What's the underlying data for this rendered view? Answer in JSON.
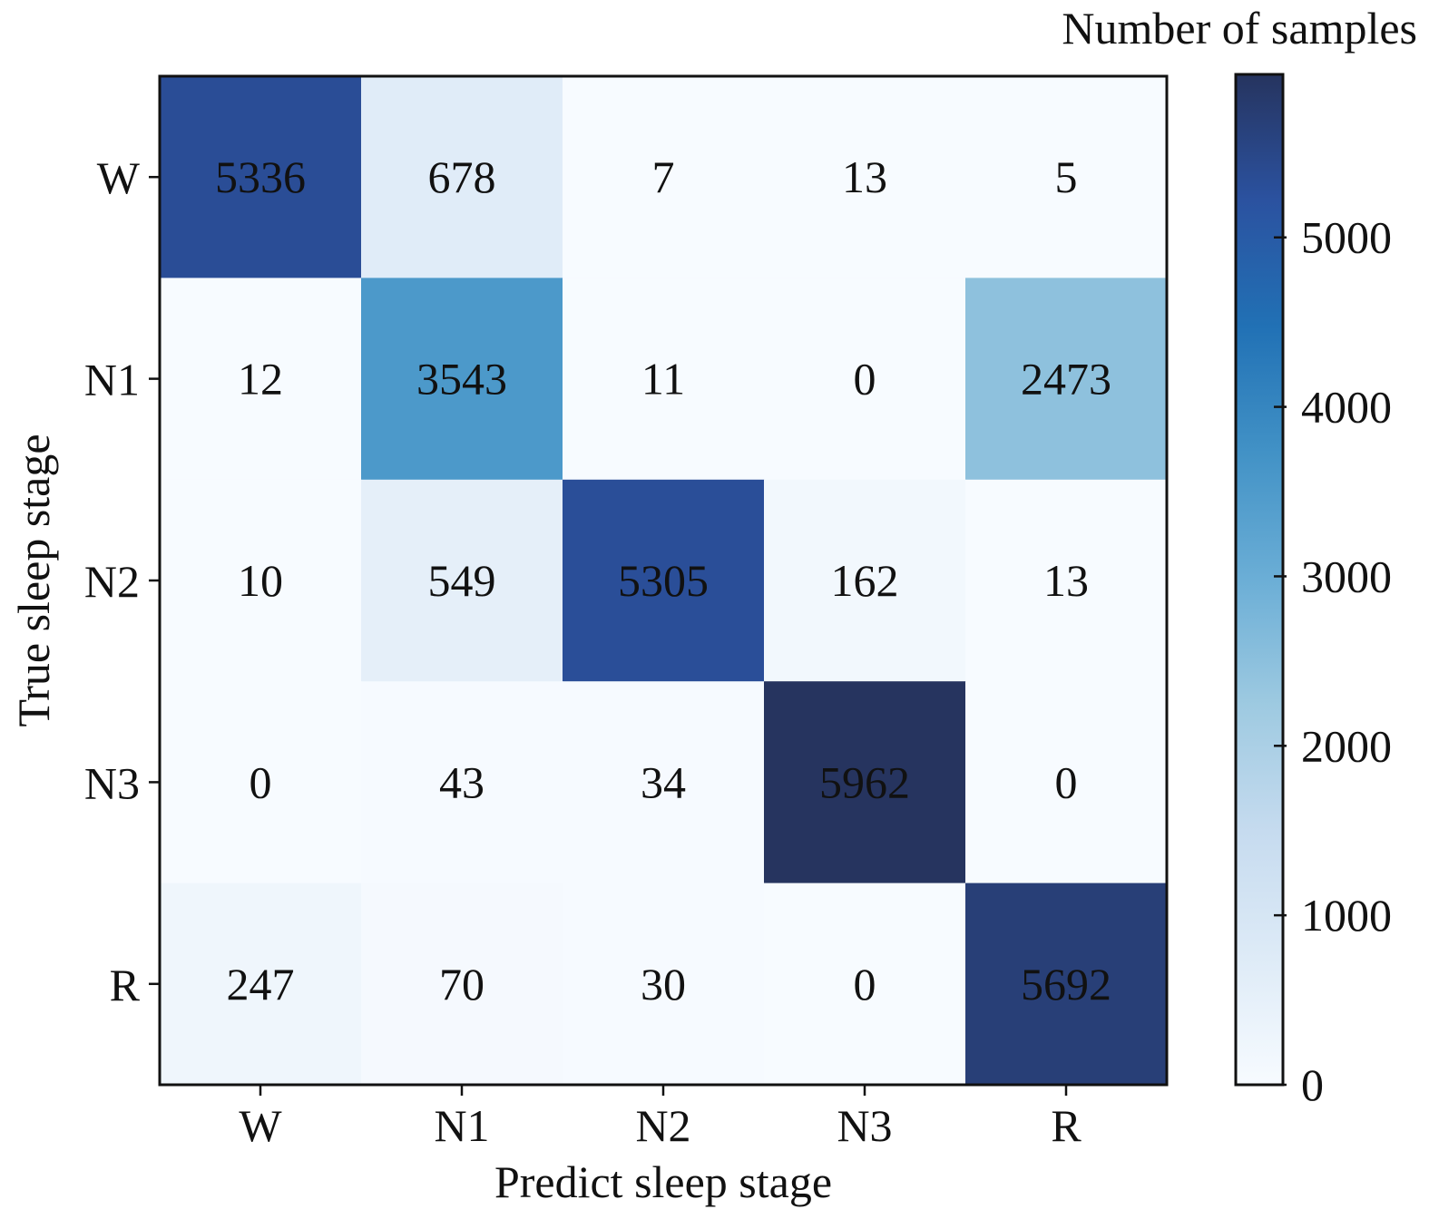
{
  "chart_data": {
    "type": "heatmap",
    "xlabel": "Predict sleep stage",
    "ylabel": "True sleep stage",
    "x_categories": [
      "W",
      "N1",
      "N2",
      "N3",
      "R"
    ],
    "y_categories": [
      "W",
      "N1",
      "N2",
      "N3",
      "R"
    ],
    "values": [
      [
        5336,
        678,
        7,
        13,
        5
      ],
      [
        12,
        3543,
        11,
        0,
        2473
      ],
      [
        10,
        549,
        5305,
        162,
        13
      ],
      [
        0,
        43,
        34,
        5962,
        0
      ],
      [
        247,
        70,
        30,
        0,
        5692
      ]
    ],
    "colormap": "Blues",
    "colorbar": {
      "label": "Number of samples",
      "range": [
        0,
        5962
      ],
      "ticks": [
        0,
        1000,
        2000,
        3000,
        4000,
        5000
      ],
      "tick_labels": [
        "0",
        "1000",
        "2000",
        "3000",
        "4000",
        "5000"
      ]
    }
  }
}
